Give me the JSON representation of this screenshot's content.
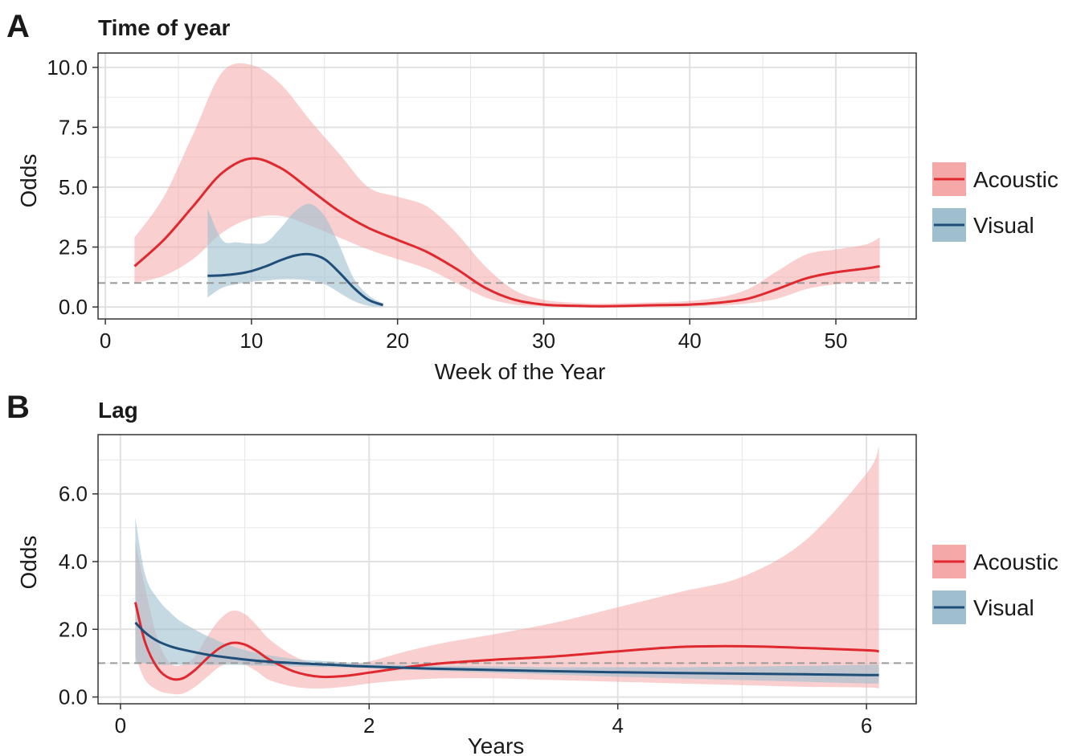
{
  "colors": {
    "acoustic_line": "#e0282f",
    "acoustic_band": "#f4a8a8",
    "visual_line": "#1f4e79",
    "visual_band": "#9fbfcf",
    "reference_line": "#9a9a9a",
    "grid": "#e6e6e6"
  },
  "chart_data": [
    {
      "panel": "A",
      "type": "line",
      "title": "Time of year",
      "xlabel": "Week of the Year",
      "ylabel": "Odds",
      "xlim": [
        -0.5,
        55.5
      ],
      "ylim": [
        -0.5,
        10.6
      ],
      "x_ticks": [
        0,
        10,
        20,
        30,
        40,
        50
      ],
      "x_tick_labels": [
        "0",
        "10",
        "20",
        "30",
        "40",
        "50"
      ],
      "y_ticks": [
        0,
        2.5,
        5,
        7.5,
        10
      ],
      "y_tick_labels": [
        "0.0",
        "2.5",
        "5.0",
        "7.5",
        "10.0"
      ],
      "reference_line": 1,
      "grid": true,
      "legend": "right",
      "series": [
        {
          "name": "Acoustic",
          "color": "#e0282f",
          "band_color": "#f4a8a8",
          "x": [
            2,
            4,
            6,
            8,
            10,
            12,
            14,
            16,
            18,
            20,
            22,
            24,
            26,
            28,
            30,
            32,
            34,
            36,
            38,
            40,
            42,
            44,
            46,
            48,
            50,
            52,
            53
          ],
          "y": [
            1.7,
            2.8,
            4.2,
            5.6,
            6.2,
            5.8,
            4.9,
            4.0,
            3.3,
            2.8,
            2.3,
            1.6,
            0.8,
            0.3,
            0.1,
            0.05,
            0.03,
            0.05,
            0.08,
            0.1,
            0.18,
            0.35,
            0.75,
            1.2,
            1.45,
            1.6,
            1.7
          ],
          "lower": [
            1.0,
            1.3,
            2.0,
            3.1,
            3.7,
            3.8,
            3.4,
            2.9,
            2.4,
            2.0,
            1.6,
            1.0,
            0.4,
            0.1,
            0.03,
            0.0,
            0.0,
            0.0,
            0.0,
            0.02,
            0.06,
            0.15,
            0.35,
            0.75,
            0.95,
            1.05,
            1.05
          ],
          "upper": [
            2.9,
            4.6,
            7.2,
            9.8,
            10.1,
            9.3,
            7.8,
            6.4,
            5.0,
            4.6,
            4.2,
            3.1,
            1.7,
            0.7,
            0.3,
            0.18,
            0.14,
            0.17,
            0.2,
            0.25,
            0.4,
            0.75,
            1.5,
            2.2,
            2.4,
            2.6,
            2.9
          ]
        },
        {
          "name": "Visual",
          "color": "#1f4e79",
          "band_color": "#9fbfcf",
          "x": [
            7,
            8,
            9,
            10,
            11,
            12,
            13,
            14,
            15,
            16,
            17,
            18,
            19
          ],
          "y": [
            1.3,
            1.32,
            1.38,
            1.5,
            1.7,
            1.95,
            2.15,
            2.2,
            2.0,
            1.45,
            0.8,
            0.3,
            0.08
          ],
          "lower": [
            0.4,
            0.8,
            0.95,
            1.05,
            1.1,
            1.15,
            1.15,
            1.1,
            0.95,
            0.6,
            0.25,
            0.05,
            0.0
          ],
          "upper": [
            4.1,
            2.8,
            2.7,
            2.65,
            2.7,
            3.3,
            4.0,
            4.3,
            3.8,
            2.6,
            1.2,
            0.5,
            0.15
          ]
        }
      ]
    },
    {
      "panel": "B",
      "type": "line",
      "title": "Lag",
      "xlabel": "Years",
      "ylabel": "Odds",
      "xlim": [
        -0.18,
        6.4
      ],
      "ylim": [
        -0.2,
        7.75
      ],
      "x_ticks": [
        0,
        2,
        4,
        6
      ],
      "x_tick_labels": [
        "0",
        "2",
        "4",
        "6"
      ],
      "y_ticks": [
        0,
        2,
        4,
        6
      ],
      "y_tick_labels": [
        "0.0",
        "2.0",
        "4.0",
        "6.0"
      ],
      "reference_line": 1,
      "grid": true,
      "legend": "right",
      "series": [
        {
          "name": "Acoustic",
          "color": "#e0282f",
          "band_color": "#f4a8a8",
          "x": [
            0.12,
            0.2,
            0.3,
            0.4,
            0.5,
            0.6,
            0.7,
            0.8,
            0.9,
            1.0,
            1.1,
            1.2,
            1.4,
            1.6,
            1.8,
            2.0,
            2.3,
            2.6,
            3.0,
            3.5,
            4.0,
            4.5,
            5.0,
            5.5,
            6.0,
            6.1
          ],
          "y": [
            2.8,
            1.6,
            0.85,
            0.55,
            0.55,
            0.8,
            1.15,
            1.45,
            1.6,
            1.55,
            1.35,
            1.1,
            0.75,
            0.6,
            0.62,
            0.72,
            0.88,
            1.0,
            1.1,
            1.2,
            1.35,
            1.48,
            1.5,
            1.45,
            1.38,
            1.35
          ],
          "lower": [
            1.2,
            0.5,
            0.2,
            0.1,
            0.1,
            0.3,
            0.6,
            0.9,
            1.0,
            0.95,
            0.75,
            0.5,
            0.3,
            0.25,
            0.3,
            0.4,
            0.5,
            0.55,
            0.55,
            0.5,
            0.45,
            0.4,
            0.35,
            0.3,
            0.28,
            0.25
          ],
          "upper": [
            4.6,
            3.2,
            1.7,
            1.0,
            0.95,
            1.2,
            1.8,
            2.3,
            2.55,
            2.45,
            2.1,
            1.7,
            1.2,
            0.95,
            0.95,
            1.05,
            1.35,
            1.6,
            1.85,
            2.2,
            2.65,
            3.1,
            3.55,
            4.6,
            6.6,
            7.4
          ]
        },
        {
          "name": "Visual",
          "color": "#1f4e79",
          "band_color": "#9fbfcf",
          "x": [
            0.12,
            0.2,
            0.3,
            0.4,
            0.5,
            0.7,
            0.9,
            1.1,
            1.4,
            1.7,
            2.0,
            2.5,
            3.0,
            3.5,
            4.0,
            4.5,
            5.0,
            5.5,
            6.0,
            6.1
          ],
          "y": [
            2.2,
            1.9,
            1.65,
            1.5,
            1.4,
            1.25,
            1.15,
            1.07,
            1.0,
            0.95,
            0.9,
            0.84,
            0.8,
            0.76,
            0.73,
            0.71,
            0.69,
            0.67,
            0.65,
            0.65
          ],
          "lower": [
            1.0,
            1.0,
            0.95,
            0.95,
            0.95,
            0.95,
            0.95,
            0.93,
            0.9,
            0.88,
            0.85,
            0.78,
            0.72,
            0.66,
            0.6,
            0.55,
            0.5,
            0.45,
            0.4,
            0.4
          ],
          "upper": [
            5.3,
            3.6,
            2.9,
            2.5,
            2.2,
            1.8,
            1.5,
            1.3,
            1.12,
            1.05,
            0.98,
            0.92,
            0.9,
            0.88,
            0.88,
            0.88,
            0.9,
            0.92,
            0.95,
            0.95
          ]
        }
      ]
    }
  ]
}
